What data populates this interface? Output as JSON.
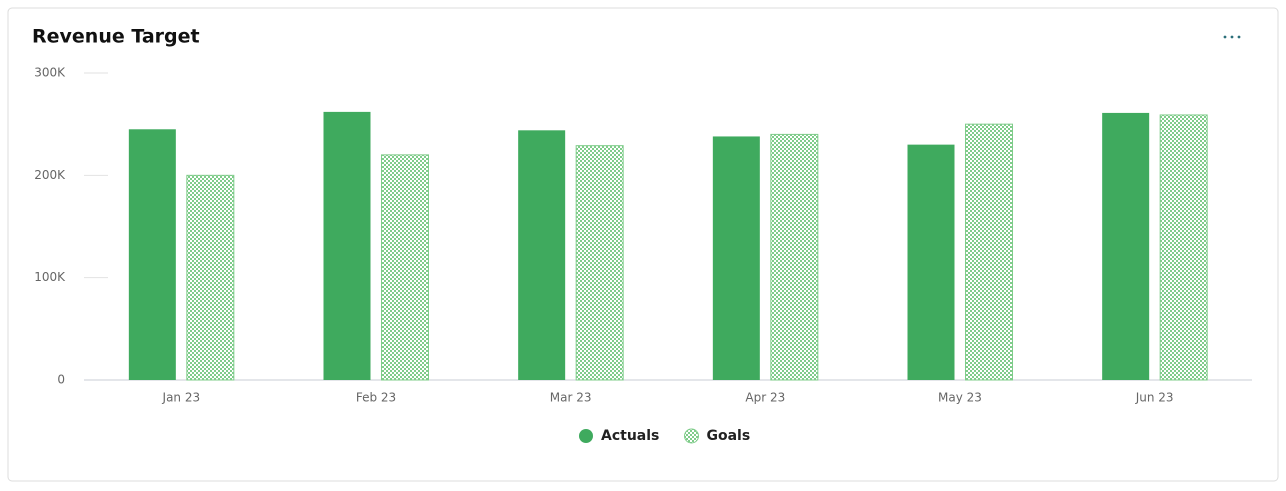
{
  "chart_data": {
    "type": "bar",
    "title": "Revenue Target",
    "categories": [
      "Jan 23",
      "Feb 23",
      "Mar 23",
      "Apr 23",
      "May 23",
      "Jun 23"
    ],
    "series": [
      {
        "name": "Actuals",
        "color": "#3faa5e",
        "values": [
          245000,
          262000,
          244000,
          238000,
          230000,
          261000
        ]
      },
      {
        "name": "Goals",
        "color": "#7fcc8a",
        "pattern": "checker",
        "values": [
          200000,
          220000,
          229000,
          240000,
          250000,
          259000
        ]
      }
    ],
    "ylim": [
      0,
      300000
    ],
    "yticks": [
      0,
      {
        "value": 100000,
        "label": "100K"
      },
      {
        "value": 200000,
        "label": "200K"
      },
      {
        "value": 300000,
        "label": "300K"
      }
    ],
    "grid": true,
    "legend": "bottom"
  }
}
